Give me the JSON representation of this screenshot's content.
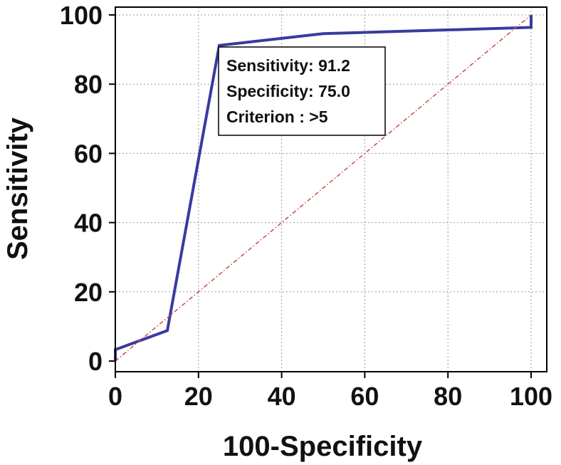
{
  "chart_data": {
    "type": "line",
    "xlabel": "100-Specificity",
    "ylabel": "Sensitivity",
    "xlim": [
      0,
      100
    ],
    "ylim": [
      0,
      100
    ],
    "x_ticks": [
      0,
      20,
      40,
      60,
      80,
      100
    ],
    "y_ticks": [
      0,
      20,
      40,
      60,
      80,
      100
    ],
    "grid": true,
    "series": [
      {
        "role": "roc-curve",
        "color": "#3a3aa0",
        "points": [
          [
            0,
            0
          ],
          [
            0,
            3.3
          ],
          [
            12.5,
            8.8
          ],
          [
            25,
            91.2
          ],
          [
            50,
            94.6
          ],
          [
            100,
            96.4
          ],
          [
            100,
            100
          ]
        ]
      },
      {
        "role": "reference-diagonal",
        "color": "#c0504d",
        "style": "dash-dot",
        "points": [
          [
            0,
            0
          ],
          [
            100,
            100
          ]
        ]
      }
    ],
    "annotation": {
      "lines": [
        "Sensitivity: 91.2",
        "Specificity: 75.0",
        "Criterion : >5"
      ],
      "anchor": [
        25,
        91.2
      ]
    }
  }
}
